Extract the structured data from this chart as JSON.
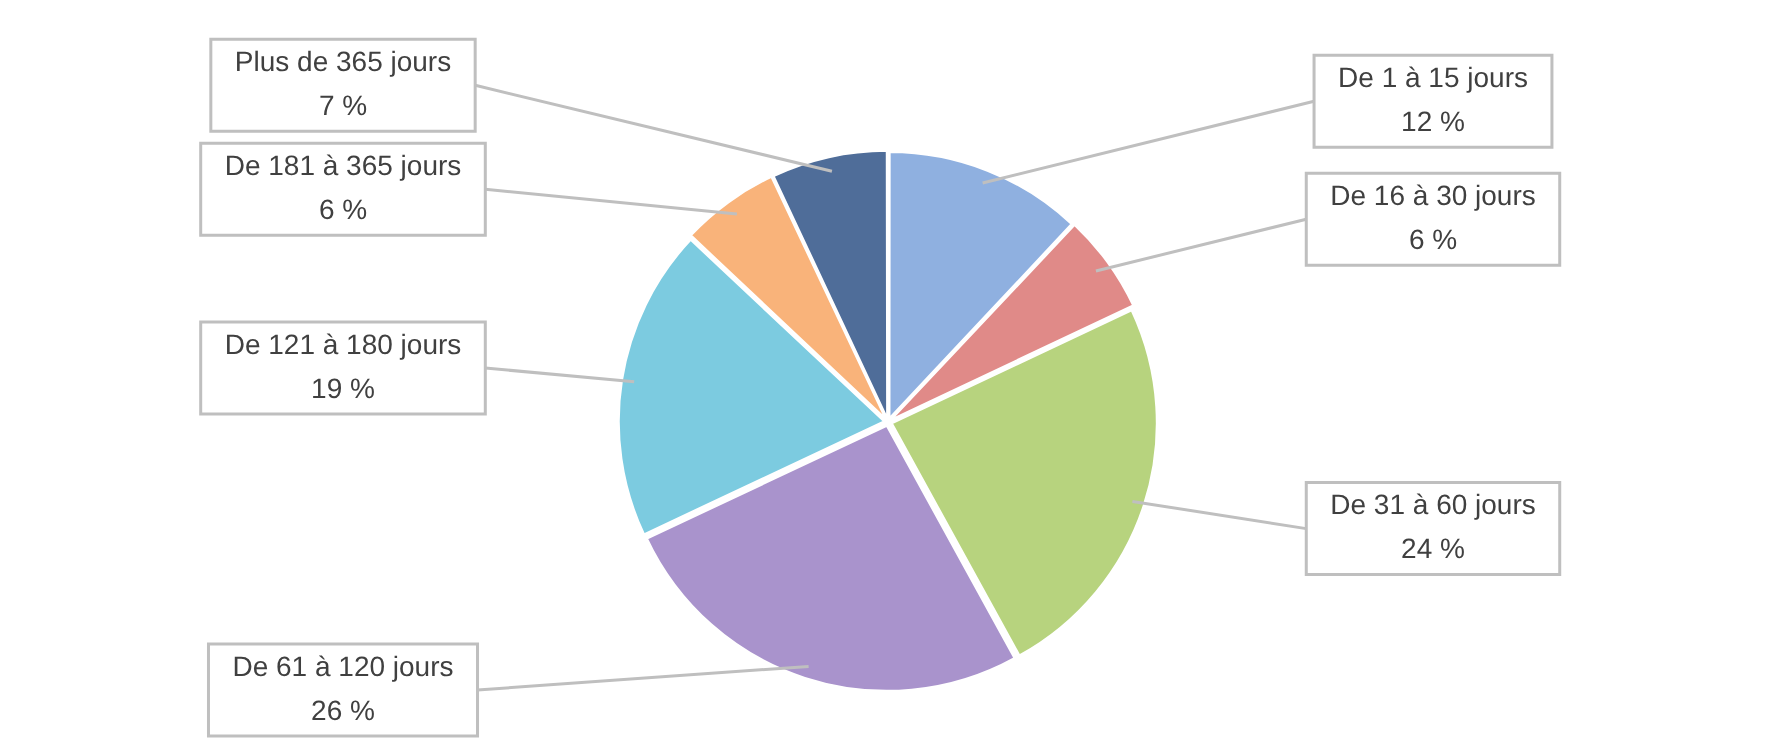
{
  "chart_data": {
    "type": "pie",
    "categories": [
      "De 1 à 15 jours",
      "De 16 à 30 jours",
      "De 31 à 60 jours",
      "De 61 à 120 jours",
      "De 121 à 180 jours",
      "De 181 à 365 jours",
      "Plus de 365 jours"
    ],
    "values": [
      12,
      6,
      24,
      26,
      19,
      6,
      7
    ],
    "colors": [
      "#8fb0e0",
      "#e08a88",
      "#b7d37e",
      "#a993cc",
      "#7ccbe0",
      "#f9b37a",
      "#4f6d99"
    ],
    "value_labels": [
      "12 %",
      "6 %",
      "24 %",
      "26 %",
      "19 %",
      "6 %",
      "7 %"
    ]
  }
}
